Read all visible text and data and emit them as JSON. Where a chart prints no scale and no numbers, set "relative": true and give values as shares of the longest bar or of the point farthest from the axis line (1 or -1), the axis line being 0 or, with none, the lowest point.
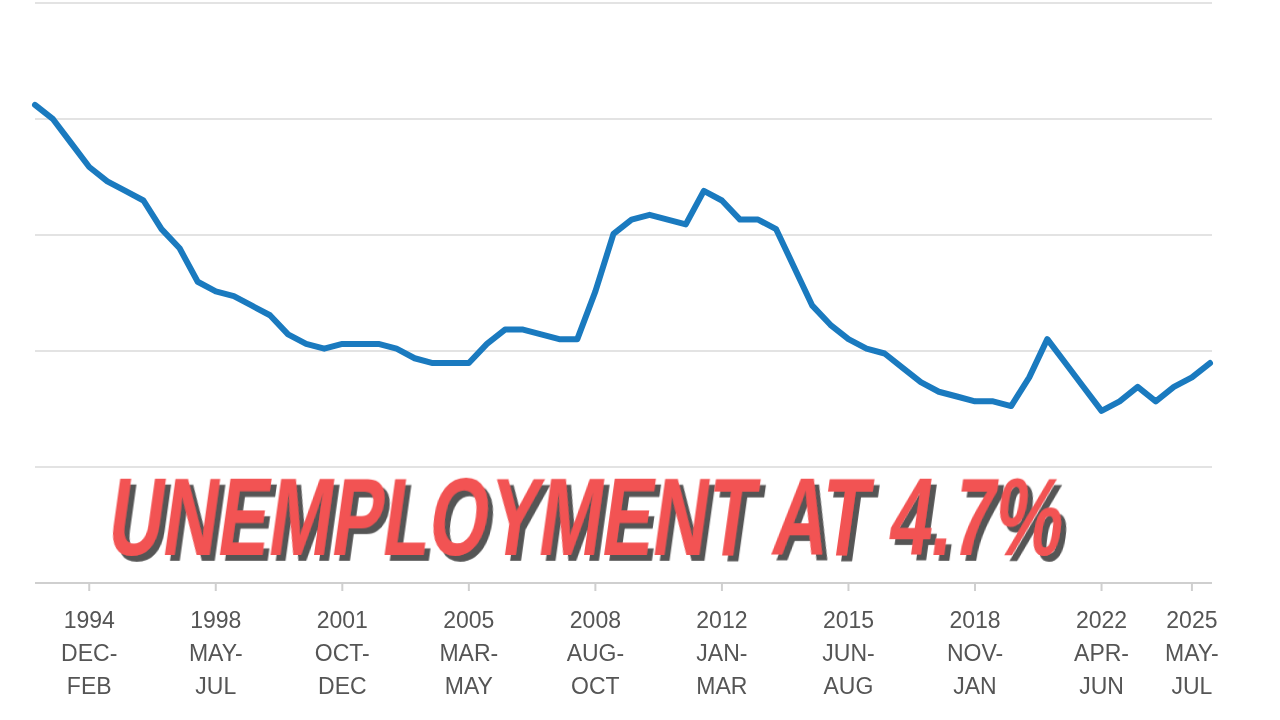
{
  "chart_data": {
    "type": "line",
    "title": "UNEMPLOYMENT  AT 4.7%",
    "relative": true,
    "grid": "y",
    "marker": "none",
    "line_style": "solid",
    "categories": [
      null,
      null,
      null,
      "1994\nDEC-\nFEB",
      null,
      null,
      null,
      null,
      null,
      null,
      "1998\nMAY-\nJUL",
      null,
      null,
      null,
      null,
      null,
      null,
      "2001\nOCT-\nDEC",
      null,
      null,
      null,
      null,
      null,
      null,
      "2005\nMAR-\nMAY",
      null,
      null,
      null,
      null,
      null,
      null,
      "2008\nAUG-\nOCT",
      null,
      null,
      null,
      null,
      null,
      null,
      "2012\nJAN-\nMAR",
      null,
      null,
      null,
      null,
      null,
      null,
      "2015\nJUN-\nAUG",
      null,
      null,
      null,
      null,
      null,
      null,
      "2018\nNOV-\nJAN",
      null,
      null,
      null,
      null,
      null,
      null,
      "2022\nAPR-\nJUN",
      null,
      null,
      null,
      null,
      "2025\nMAY-\nJUL",
      null
    ],
    "series": [
      {
        "color": "#1a7abf",
        "values": [
          1.0,
          0.97,
          0.92,
          0.87,
          0.84,
          0.82,
          0.8,
          0.74,
          0.7,
          0.63,
          0.61,
          0.6,
          0.58,
          0.56,
          0.52,
          0.5,
          0.49,
          0.5,
          0.5,
          0.5,
          0.49,
          0.47,
          0.46,
          0.46,
          0.46,
          0.5,
          0.53,
          0.53,
          0.52,
          0.51,
          0.51,
          0.61,
          0.73,
          0.76,
          0.77,
          0.76,
          0.75,
          0.82,
          0.8,
          0.76,
          0.76,
          0.74,
          0.66,
          0.58,
          0.54,
          0.51,
          0.49,
          0.48,
          0.45,
          0.42,
          0.4,
          0.39,
          0.38,
          0.38,
          0.37,
          0.43,
          0.51,
          0.46,
          0.41,
          0.36,
          0.38,
          0.41,
          0.38,
          0.41,
          0.43,
          0.46
        ]
      }
    ]
  }
}
